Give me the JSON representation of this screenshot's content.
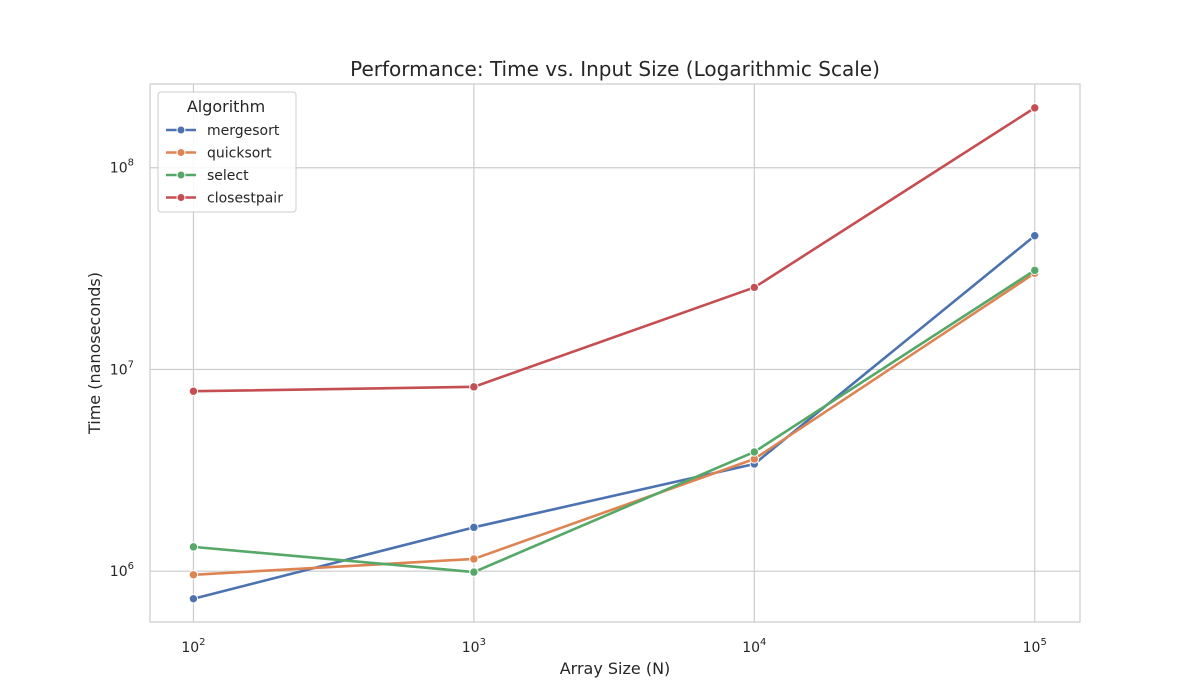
{
  "chart_data": {
    "type": "line",
    "title": "Performance: Time vs. Input Size (Logarithmic Scale)",
    "xlabel": "Array Size (N)",
    "ylabel": "Time (nanoseconds)",
    "x_scale": "log",
    "y_scale": "log",
    "x": [
      100,
      1000,
      10000,
      100000
    ],
    "x_ticks": [
      {
        "value": 100,
        "base": "10",
        "exp": "2"
      },
      {
        "value": 1000,
        "base": "10",
        "exp": "3"
      },
      {
        "value": 10000,
        "base": "10",
        "exp": "4"
      },
      {
        "value": 100000,
        "base": "10",
        "exp": "5"
      }
    ],
    "y_ticks": [
      {
        "value": 1000000,
        "base": "10",
        "exp": "6"
      },
      {
        "value": 10000000,
        "base": "10",
        "exp": "7"
      },
      {
        "value": 100000000,
        "base": "10",
        "exp": "8"
      }
    ],
    "xlim": [
      70,
      145000
    ],
    "ylim": [
      560000,
      260000000
    ],
    "grid": true,
    "legend": {
      "title": "Algorithm",
      "placement": "top-left"
    },
    "series": [
      {
        "name": "mergesort",
        "color": "#4c72b0",
        "values": [
          730000,
          1650000,
          3400000,
          46000000
        ]
      },
      {
        "name": "quicksort",
        "color": "#dd8452",
        "values": [
          960000,
          1150000,
          3600000,
          30000000
        ]
      },
      {
        "name": "select",
        "color": "#55a868",
        "values": [
          1320000,
          990000,
          3900000,
          31000000
        ]
      },
      {
        "name": "closestpair",
        "color": "#c44e52",
        "values": [
          7800000,
          8200000,
          25500000,
          198000000
        ]
      }
    ]
  }
}
